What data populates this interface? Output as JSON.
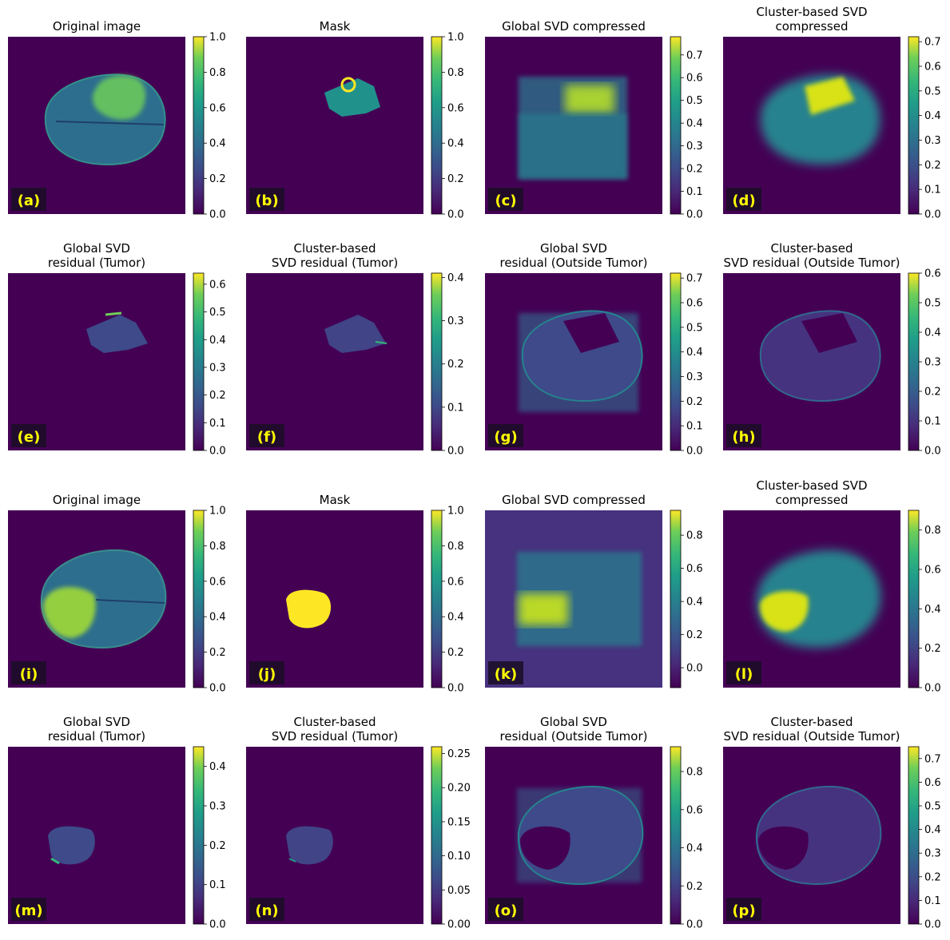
{
  "colors": {
    "viridis_low": "#440154",
    "viridis_mid": "#21918c",
    "viridis_high": "#fde725",
    "label_text": "#ffff00",
    "label_box": "#1a0d26"
  },
  "chart_data": [
    {
      "type": "heatmap",
      "panel": "a",
      "title_lines": [
        "Original image"
      ],
      "label": "(a)",
      "image": "brain1-original",
      "colorbar": {
        "ticks": [
          "0.0",
          "0.2",
          "0.4",
          "0.6",
          "0.8",
          "1.0"
        ],
        "vmin": 0,
        "vmax": 1.0
      }
    },
    {
      "type": "heatmap",
      "panel": "b",
      "title_lines": [
        "Mask"
      ],
      "label": "(b)",
      "image": "brain1-mask",
      "colorbar": {
        "ticks": [
          "0.0",
          "0.2",
          "0.4",
          "0.6",
          "0.8",
          "1.0"
        ],
        "vmin": 0,
        "vmax": 1.0
      }
    },
    {
      "type": "heatmap",
      "panel": "c",
      "title_lines": [
        "Global SVD compressed"
      ],
      "label": "(c)",
      "image": "brain1-global-svd-compressed",
      "colorbar": {
        "ticks": [
          "0.0",
          "0.1",
          "0.2",
          "0.3",
          "0.4",
          "0.5",
          "0.6",
          "0.7"
        ],
        "vmin": 0,
        "vmax": 0.78
      }
    },
    {
      "type": "heatmap",
      "panel": "d",
      "title_lines": [
        "Cluster-based SVD",
        "compressed"
      ],
      "label": "(d)",
      "image": "brain1-cluster-svd-compressed",
      "colorbar": {
        "ticks": [
          "0.0",
          "0.1",
          "0.2",
          "0.3",
          "0.4",
          "0.5",
          "0.6",
          "0.7"
        ],
        "vmin": 0,
        "vmax": 0.72
      }
    },
    {
      "type": "heatmap",
      "panel": "e",
      "title_lines": [
        "Global SVD",
        "residual (Tumor)"
      ],
      "label": "(e)",
      "image": "brain1-global-residual-tumor",
      "colorbar": {
        "ticks": [
          "0.0",
          "0.1",
          "0.2",
          "0.3",
          "0.4",
          "0.5",
          "0.6"
        ],
        "vmin": 0,
        "vmax": 0.64
      }
    },
    {
      "type": "heatmap",
      "panel": "f",
      "title_lines": [
        "Cluster-based",
        "SVD residual (Tumor)"
      ],
      "label": "(f)",
      "image": "brain1-cluster-residual-tumor",
      "colorbar": {
        "ticks": [
          "0.0",
          "0.1",
          "0.2",
          "0.3",
          "0.4"
        ],
        "vmin": 0,
        "vmax": 0.41
      }
    },
    {
      "type": "heatmap",
      "panel": "g",
      "title_lines": [
        "Global SVD",
        "residual (Outside Tumor)"
      ],
      "label": "(g)",
      "image": "brain1-global-residual-outside",
      "colorbar": {
        "ticks": [
          "0.0",
          "0.1",
          "0.2",
          "0.3",
          "0.4",
          "0.5",
          "0.6",
          "0.7"
        ],
        "vmin": 0,
        "vmax": 0.72
      }
    },
    {
      "type": "heatmap",
      "panel": "h",
      "title_lines": [
        "Cluster-based",
        "SVD residual (Outside Tumor)"
      ],
      "label": "(h)",
      "image": "brain1-cluster-residual-outside",
      "colorbar": {
        "ticks": [
          "0.0",
          "0.1",
          "0.2",
          "0.3",
          "0.4",
          "0.5",
          "0.6"
        ],
        "vmin": 0,
        "vmax": 0.6
      }
    },
    {
      "type": "heatmap",
      "panel": "i",
      "title_lines": [
        "Original image"
      ],
      "label": "(i)",
      "image": "brain2-original",
      "colorbar": {
        "ticks": [
          "0.0",
          "0.2",
          "0.4",
          "0.6",
          "0.8",
          "1.0"
        ],
        "vmin": 0,
        "vmax": 1.0
      }
    },
    {
      "type": "heatmap",
      "panel": "j",
      "title_lines": [
        "Mask"
      ],
      "label": "(j)",
      "image": "brain2-mask",
      "colorbar": {
        "ticks": [
          "0.0",
          "0.2",
          "0.4",
          "0.6",
          "0.8",
          "1.0"
        ],
        "vmin": 0,
        "vmax": 1.0
      }
    },
    {
      "type": "heatmap",
      "panel": "k",
      "title_lines": [
        "Global SVD compressed"
      ],
      "label": "(k)",
      "image": "brain2-global-svd-compressed",
      "colorbar": {
        "ticks": [
          "0.0",
          "0.2",
          "0.4",
          "0.6",
          "0.8"
        ],
        "vmin": -0.12,
        "vmax": 0.95
      }
    },
    {
      "type": "heatmap",
      "panel": "l",
      "title_lines": [
        "Cluster-based SVD",
        "compressed"
      ],
      "label": "(l)",
      "image": "brain2-cluster-svd-compressed",
      "colorbar": {
        "ticks": [
          "0.0",
          "0.2",
          "0.4",
          "0.6",
          "0.8"
        ],
        "vmin": 0,
        "vmax": 0.9
      }
    },
    {
      "type": "heatmap",
      "panel": "m",
      "title_lines": [
        "Global SVD",
        "residual (Tumor)"
      ],
      "label": "(m)",
      "image": "brain2-global-residual-tumor",
      "colorbar": {
        "ticks": [
          "0.0",
          "0.1",
          "0.2",
          "0.3",
          "0.4"
        ],
        "vmin": 0,
        "vmax": 0.45
      }
    },
    {
      "type": "heatmap",
      "panel": "n",
      "title_lines": [
        "Cluster-based",
        "SVD residual (Tumor)"
      ],
      "label": "(n)",
      "image": "brain2-cluster-residual-tumor",
      "colorbar": {
        "ticks": [
          "0.00",
          "0.05",
          "0.10",
          "0.15",
          "0.20",
          "0.25"
        ],
        "vmin": 0,
        "vmax": 0.26
      }
    },
    {
      "type": "heatmap",
      "panel": "o",
      "title_lines": [
        "Global SVD",
        "residual (Outside Tumor)"
      ],
      "label": "(o)",
      "image": "brain2-global-residual-outside",
      "colorbar": {
        "ticks": [
          "0.0",
          "0.2",
          "0.4",
          "0.6",
          "0.8"
        ],
        "vmin": 0,
        "vmax": 0.93
      }
    },
    {
      "type": "heatmap",
      "panel": "p",
      "title_lines": [
        "Cluster-based",
        "SVD residual (Outside Tumor)"
      ],
      "label": "(p)",
      "image": "brain2-cluster-residual-outside",
      "colorbar": {
        "ticks": [
          "0.0",
          "0.1",
          "0.2",
          "0.3",
          "0.4",
          "0.5",
          "0.6",
          "0.7"
        ],
        "vmin": 0,
        "vmax": 0.75
      }
    }
  ]
}
